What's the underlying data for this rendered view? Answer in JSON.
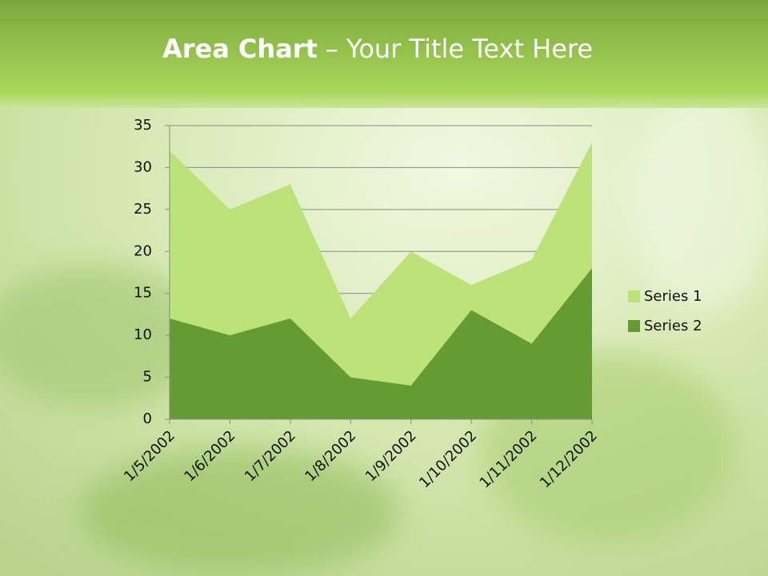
{
  "chart_data": {
    "type": "area",
    "title_parts": [
      "Area Chart",
      "– Your Title Text Here"
    ],
    "categories": [
      "1/5/2002",
      "1/6/2002",
      "1/7/2002",
      "1/8/2002",
      "1/9/2002",
      "1/10/2002",
      "1/11/2002",
      "1/12/2002"
    ],
    "series": [
      {
        "name": "Series 1",
        "color": "#bce27a",
        "values": [
          32,
          25,
          28,
          12,
          20,
          16,
          19,
          33
        ]
      },
      {
        "name": "Series 2",
        "color": "#659b33",
        "values": [
          12,
          10,
          12,
          5,
          4,
          13,
          9,
          18
        ]
      }
    ],
    "ylim": [
      0,
      35
    ],
    "yticks": [
      0,
      5,
      10,
      15,
      20,
      25,
      30,
      35
    ],
    "grid": true,
    "legend": "right"
  }
}
